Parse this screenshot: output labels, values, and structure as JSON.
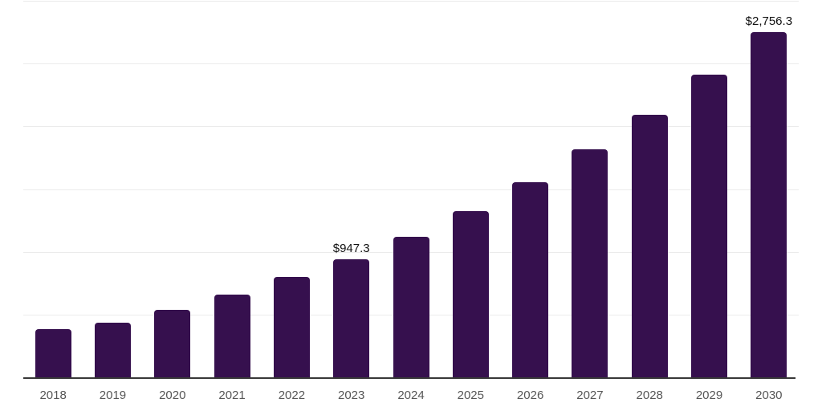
{
  "chart": {
    "background_color": "#ffffff",
    "bar_color": "#36104e",
    "grid_color": "#ebebeb",
    "axis_line_color": "#383838",
    "tick_label_color": "#565656",
    "annotation_color": "#111111"
  },
  "chart_data": {
    "type": "bar",
    "title": "",
    "xlabel": "",
    "ylabel": "",
    "categories": [
      "2018",
      "2019",
      "2020",
      "2021",
      "2022",
      "2023",
      "2024",
      "2025",
      "2026",
      "2027",
      "2028",
      "2029",
      "2030"
    ],
    "values": [
      390,
      440,
      545,
      665,
      805,
      947.3,
      1125,
      1330,
      1560,
      1820,
      2100,
      2415,
      2756.3
    ],
    "labeled_points": [
      {
        "category": "2023",
        "label": "$947.3"
      },
      {
        "category": "2030",
        "label": "$2,756.3"
      }
    ],
    "ylim": [
      0,
      3000
    ],
    "y_gridline_step": 500,
    "grid": "horizontal",
    "y_axis_tick_labels_visible": false,
    "legend_position": "none"
  }
}
